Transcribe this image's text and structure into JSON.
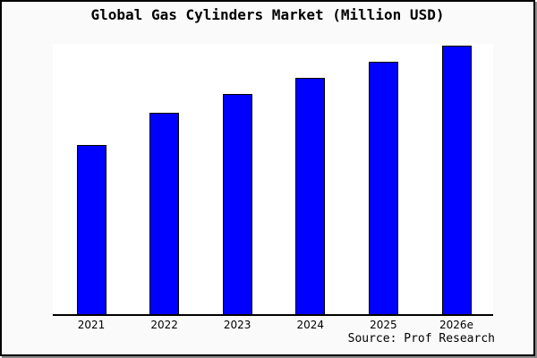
{
  "window": {
    "background_color": "#fafafa",
    "frame_border_color": "#000000",
    "frame_shadow_color": "#8c8c8c"
  },
  "chart": {
    "title": "Global Gas Cylinders Market (Million USD)",
    "source": "Source: Prof Research",
    "colors": {
      "bar_fill": "#0000ff",
      "bar_border": "#000000",
      "plot_background": "#ffffff",
      "axis_color": "#000000",
      "text_color": "#000000"
    }
  },
  "chart_data": {
    "type": "bar",
    "title": "Global Gas Cylinders Market (Million USD)",
    "categories": [
      "2021",
      "2022",
      "2023",
      "2024",
      "2025",
      "2026e"
    ],
    "values": [
      63,
      75,
      82,
      88,
      94,
      100
    ],
    "values_note": "No y-axis scale or data labels are shown in the image; values are estimated bar heights as a percentage of the tallest bar (2026e = 100).",
    "xlabel": "",
    "ylabel": "",
    "ylim": [
      0,
      100.5
    ],
    "grid": false,
    "legend": "none",
    "annotation": "Source: Prof Research"
  }
}
